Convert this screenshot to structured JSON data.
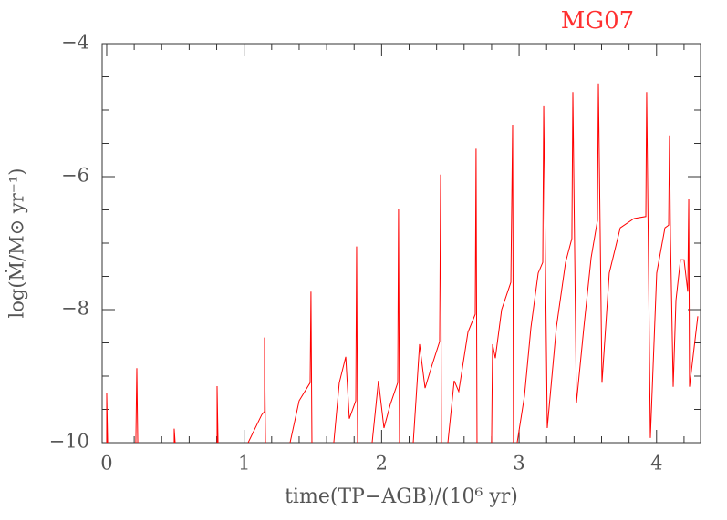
{
  "chart_data": {
    "type": "line",
    "title": "MG07",
    "xlabel": "time(TP−AGB)/(10⁶ yr)",
    "ylabel": "log(Ṁ/M⊙ yr⁻¹)",
    "xlim": [
      -0.033,
      4.32
    ],
    "ylim": [
      -10,
      -4
    ],
    "xticks": [
      0,
      1,
      2,
      3,
      4
    ],
    "xticks_minor": [
      0.2,
      0.4,
      0.6,
      0.8,
      1.2,
      1.4,
      1.6,
      1.8,
      2.2,
      2.4,
      2.6,
      2.8,
      3.2,
      3.4,
      3.6,
      3.8,
      4.2
    ],
    "yticks": [
      {
        "value": -10,
        "label": "−10"
      },
      {
        "value": -8,
        "label": "−8"
      },
      {
        "value": -6,
        "label": "−6"
      },
      {
        "value": -4,
        "label": "−4"
      }
    ],
    "yticks_minor": [
      -9.5,
      -9,
      -8.5,
      -7.5,
      -7,
      -6.5,
      -5.5,
      -5,
      -4.5
    ],
    "x": [
      0,
      0,
      0.007,
      null,
      0.212,
      0.219,
      0.226,
      null,
      0.491,
      0.491,
      0.498,
      null,
      0.803,
      0.803,
      0.81,
      null,
      1.029,
      1.128,
      1.148,
      1.148,
      1.155,
      null,
      1.334,
      1.4,
      1.48,
      1.486,
      1.493,
      null,
      1.652,
      1.692,
      1.739,
      1.765,
      1.812,
      1.818,
      1.825,
      null,
      1.931,
      1.977,
      2.017,
      2.064,
      2.117,
      2.123,
      2.13,
      null,
      2.23,
      2.276,
      2.316,
      2.369,
      2.422,
      2.429,
      2.435,
      null,
      2.482,
      2.528,
      2.561,
      2.628,
      2.681,
      2.687,
      2.694,
      null,
      2.8,
      2.807,
      2.827,
      2.873,
      2.94,
      2.953,
      2.959,
      null,
      2.986,
      3.039,
      3.086,
      3.139,
      3.172,
      3.179,
      3.205,
      3.271,
      3.338,
      3.384,
      3.391,
      3.417,
      3.471,
      3.524,
      3.57,
      3.577,
      3.603,
      3.656,
      3.736,
      3.836,
      3.922,
      3.928,
      3.955,
      4.001,
      4.061,
      4.088,
      4.094,
      4.101,
      4.121,
      4.141,
      4.174,
      4.2,
      4.227,
      4.234,
      4.24,
      4.3
    ],
    "series": [
      {
        "color": "#ff0000",
        "values": [
          -10,
          -9.26,
          -10,
          null,
          -10,
          -8.88,
          -10,
          null,
          -10,
          -9.79,
          -10,
          null,
          -10,
          -9.15,
          -10,
          null,
          -10,
          -9.58,
          -9.53,
          -8.42,
          -10,
          null,
          -10,
          -9.37,
          -9.1,
          -7.73,
          -10,
          null,
          -10,
          -9.1,
          -8.71,
          -9.64,
          -9.37,
          -7.05,
          -10,
          null,
          -10,
          -9.07,
          -9.78,
          -9.42,
          -9.1,
          -6.48,
          -10,
          null,
          -10,
          -8.52,
          -9.18,
          -8.82,
          -8.48,
          -5.97,
          -10,
          null,
          -10,
          -9.07,
          -9.23,
          -8.34,
          -8.07,
          -5.58,
          -10,
          null,
          -10,
          -8.52,
          -8.73,
          -8.0,
          -7.59,
          -5.22,
          -10,
          null,
          -10,
          -9.3,
          -8.27,
          -7.45,
          -7.29,
          -4.93,
          -9.78,
          -8.27,
          -7.29,
          -6.93,
          -4.73,
          -9.41,
          -8.27,
          -7.22,
          -6.66,
          -4.6,
          -9.1,
          -7.45,
          -6.77,
          -6.63,
          -6.6,
          -4.73,
          -9.93,
          -7.45,
          -6.77,
          -6.73,
          -5.38,
          -6.9,
          -9.16,
          -7.86,
          -7.25,
          -7.25,
          -7.73,
          -6.33,
          -9.16,
          -8.1
        ]
      }
    ]
  }
}
